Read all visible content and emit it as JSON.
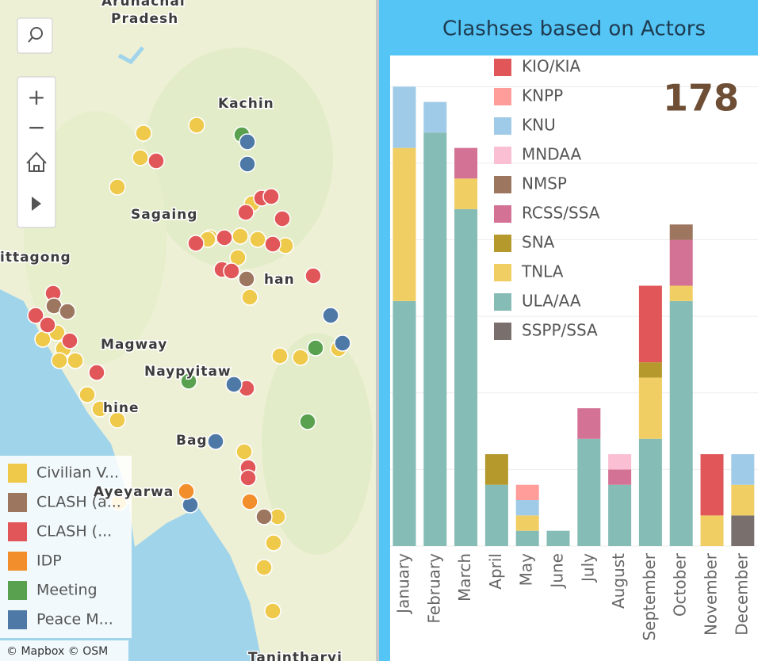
{
  "map": {
    "places": [
      "Arunachal",
      "Pradesh",
      "Kachin",
      "Sagaing",
      "ittagong",
      "han",
      "Magway",
      "Naypyitaw",
      "hine",
      "Bag",
      "Ayeyarwa",
      "Tanintharyi"
    ],
    "legend": [
      {
        "label": "Civilian V...",
        "color": "#eec94a"
      },
      {
        "label": "CLASH (a...",
        "color": "#9d7660"
      },
      {
        "label": "CLASH (...",
        "color": "#e15759"
      },
      {
        "label": "IDP",
        "color": "#f28e2b"
      },
      {
        "label": "Meeting",
        "color": "#59a14f"
      },
      {
        "label": "Peace M...",
        "color": "#4e79a7"
      }
    ],
    "attribution": "© Mapbox  © OSM"
  },
  "kpi": 178,
  "chart_data": {
    "type": "stacked-bar",
    "title": "Clashses based on Actors",
    "categories": [
      "January",
      "February",
      "March",
      "April",
      "May",
      "June",
      "July",
      "August",
      "September",
      "October",
      "November",
      "December"
    ],
    "series": [
      {
        "name": "KIO/KIA",
        "color": "#e15759",
        "values": [
          0,
          0,
          0,
          0,
          0,
          0,
          0,
          0,
          5,
          0,
          4,
          0
        ]
      },
      {
        "name": "KNPP",
        "color": "#ff9d9a",
        "values": [
          0,
          0,
          0,
          0,
          1,
          0,
          0,
          0,
          0,
          0,
          0,
          0
        ]
      },
      {
        "name": "KNU",
        "color": "#a0cbe8",
        "values": [
          4,
          2,
          0,
          0,
          1,
          0,
          0,
          0,
          0,
          0,
          0,
          2
        ]
      },
      {
        "name": "MNDAA",
        "color": "#fabfd2",
        "values": [
          0,
          0,
          0,
          0,
          0,
          0,
          0,
          1,
          0,
          0,
          0,
          0
        ]
      },
      {
        "name": "NMSP",
        "color": "#9d7660",
        "values": [
          0,
          0,
          0,
          0,
          0,
          0,
          0,
          0,
          0,
          1,
          0,
          0
        ]
      },
      {
        "name": "RCSS/SSA",
        "color": "#d37295",
        "values": [
          0,
          0,
          2,
          0,
          0,
          0,
          2,
          1,
          0,
          3,
          0,
          0
        ]
      },
      {
        "name": "SNA",
        "color": "#b6992d",
        "values": [
          0,
          0,
          0,
          2,
          0,
          0,
          0,
          0,
          1,
          0,
          0,
          0
        ]
      },
      {
        "name": "TNLA",
        "color": "#f1ce63",
        "values": [
          10,
          0,
          2,
          0,
          1,
          0,
          0,
          0,
          4,
          1,
          2,
          2
        ]
      },
      {
        "name": "ULA/AA",
        "color": "#86bcb6",
        "values": [
          16,
          27,
          22,
          4,
          1,
          1,
          7,
          4,
          7,
          16,
          0,
          0
        ]
      },
      {
        "name": "SSPP/SSA",
        "color": "#79706e",
        "values": [
          0,
          0,
          0,
          0,
          0,
          0,
          0,
          0,
          0,
          0,
          0,
          2
        ]
      }
    ],
    "ylim": [
      0,
      31
    ],
    "yticks": [
      0,
      5,
      10,
      15,
      20,
      25,
      30
    ],
    "grid": true
  }
}
